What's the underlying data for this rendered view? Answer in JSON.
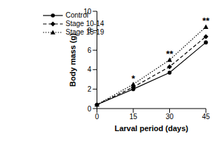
{
  "chart_data": {
    "type": "line",
    "x_label": "Larval period (days)",
    "y_label": "Body mass (g)",
    "x": [
      0,
      15,
      30,
      45
    ],
    "xlim": [
      0,
      45
    ],
    "xticks": [
      0,
      15,
      30,
      45
    ],
    "ylim": [
      0,
      10
    ],
    "yticks": [
      0,
      2,
      4,
      6,
      8,
      10
    ],
    "grid": false,
    "legend": "top-left",
    "series": [
      {
        "name": "Control",
        "color": "#000000",
        "marker": "circle",
        "line_style": "solid",
        "values": [
          0.4,
          2.0,
          3.7,
          6.8
        ]
      },
      {
        "name": "Stage 10-14",
        "color": "#000000",
        "marker": "diamond",
        "line_style": "dashed",
        "values": [
          0.4,
          2.2,
          4.3,
          7.4
        ]
      },
      {
        "name": "Stage 15-19",
        "color": "#000000",
        "marker": "triangle",
        "line_style": "dotted",
        "values": [
          0.4,
          2.5,
          5.0,
          8.4
        ]
      }
    ],
    "annotations": [
      {
        "x": 15,
        "text": "*"
      },
      {
        "x": 30,
        "text": "**"
      },
      {
        "x": 45,
        "text": "**"
      }
    ]
  }
}
